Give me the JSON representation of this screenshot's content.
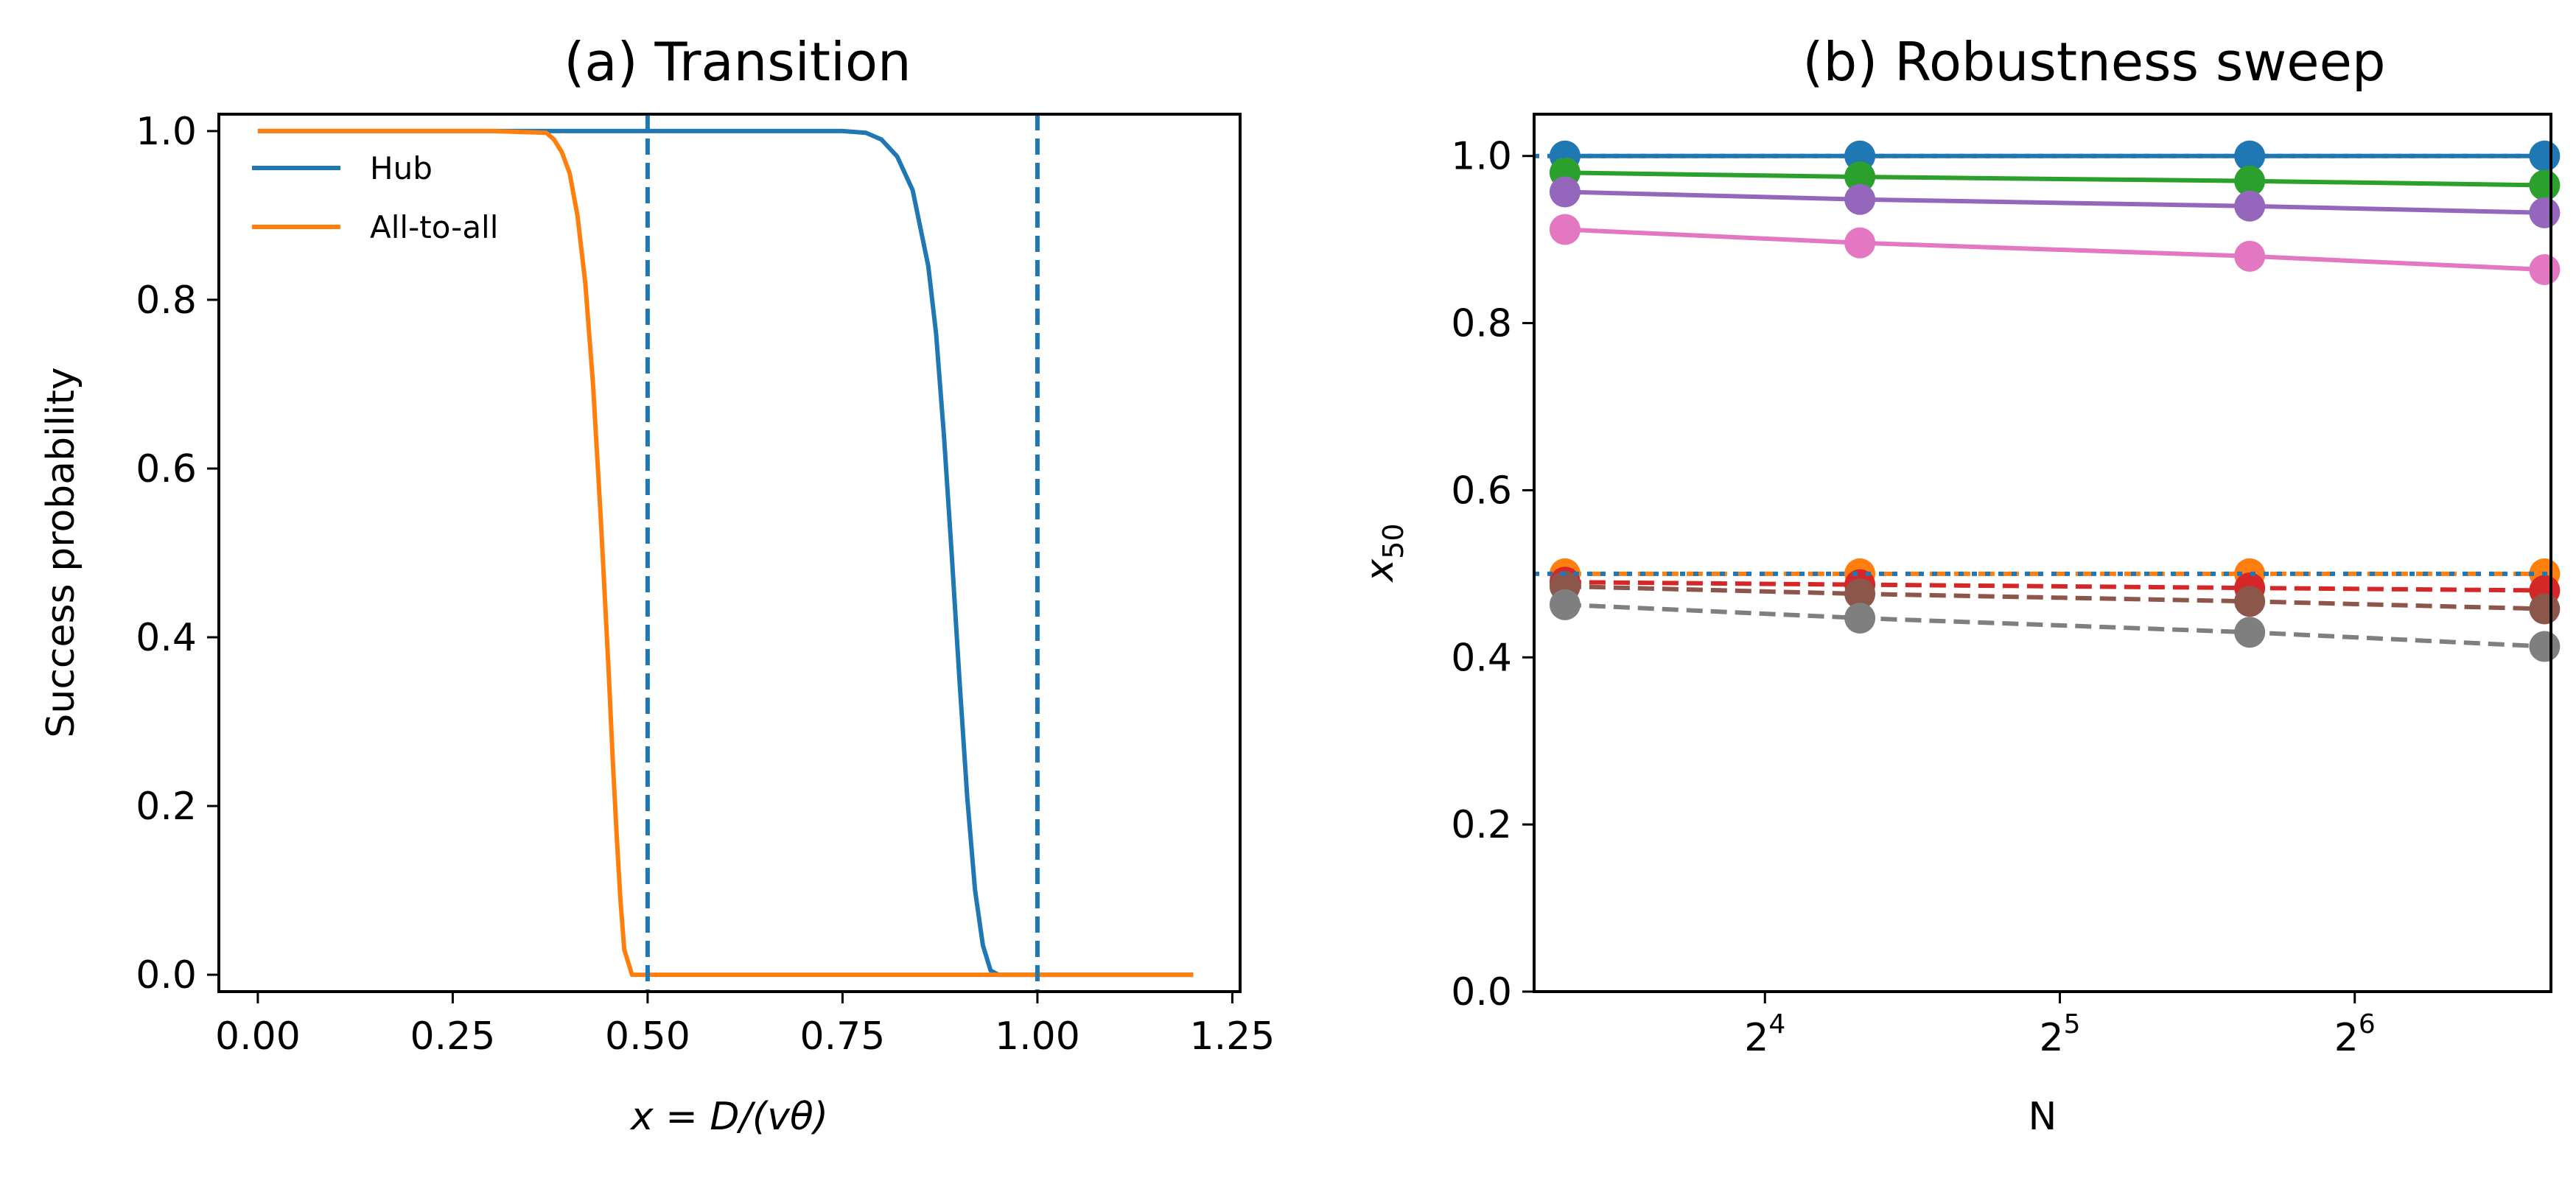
{
  "chart_data": [
    {
      "type": "line",
      "title": "(a) Transition",
      "xlabel": "x = D/(vθ)",
      "ylabel": "Success probability",
      "xlim": [
        -0.05,
        1.26
      ],
      "ylim": [
        -0.02,
        1.02
      ],
      "xticks": [
        0.0,
        0.25,
        0.5,
        0.75,
        1.0,
        1.25
      ],
      "xtick_labels": [
        "0.00",
        "0.25",
        "0.50",
        "0.75",
        "1.00",
        "1.25"
      ],
      "yticks": [
        0.0,
        0.2,
        0.4,
        0.6,
        0.8,
        1.0
      ],
      "ytick_labels": [
        "0.0",
        "0.2",
        "0.4",
        "0.6",
        "0.8",
        "1.0"
      ],
      "grid": false,
      "legend": "upper-left",
      "series": [
        {
          "name": "Hub",
          "color": "#1f77b4",
          "x": [
            0.0,
            0.5,
            0.75,
            0.78,
            0.8,
            0.82,
            0.84,
            0.86,
            0.87,
            0.88,
            0.89,
            0.9,
            0.91,
            0.92,
            0.93,
            0.94,
            0.95,
            1.0,
            1.2
          ],
          "y": [
            1.0,
            1.0,
            1.0,
            0.998,
            0.99,
            0.97,
            0.93,
            0.84,
            0.76,
            0.64,
            0.5,
            0.35,
            0.21,
            0.1,
            0.035,
            0.005,
            0.0,
            0.0,
            0.0
          ]
        },
        {
          "name": "All-to-all",
          "color": "#ff7f0e",
          "x": [
            0.0,
            0.3,
            0.37,
            0.38,
            0.39,
            0.4,
            0.41,
            0.42,
            0.43,
            0.44,
            0.45,
            0.455,
            0.46,
            0.465,
            0.47,
            0.48,
            0.5,
            1.2
          ],
          "y": [
            1.0,
            1.0,
            0.998,
            0.99,
            0.975,
            0.95,
            0.9,
            0.82,
            0.7,
            0.54,
            0.36,
            0.26,
            0.17,
            0.09,
            0.03,
            0.0,
            0.0,
            0.0
          ]
        }
      ],
      "vlines": [
        {
          "x": 0.5,
          "color": "#1f77b4",
          "style": "dashed"
        },
        {
          "x": 1.0,
          "color": "#1f77b4",
          "style": "dashed"
        }
      ]
    },
    {
      "type": "line",
      "title": "(b) Robustness sweep",
      "xlabel": "N",
      "ylabel": "x",
      "ylabel_sub": "50",
      "xscale": "log2",
      "xlim": [
        9.3,
        101.5
      ],
      "ylim": [
        0.0,
        1.05
      ],
      "xticks": [
        16,
        32,
        64
      ],
      "xtick_base": "2",
      "xtick_exps": [
        "4",
        "5",
        "6"
      ],
      "yticks": [
        0.0,
        0.2,
        0.4,
        0.6,
        0.8,
        1.0
      ],
      "ytick_labels": [
        "0.0",
        "0.2",
        "0.4",
        "0.6",
        "0.8",
        "1.0"
      ],
      "grid": false,
      "legend": "none",
      "x": [
        10,
        20,
        50,
        100
      ],
      "hlines": [
        {
          "y": 1.0,
          "color": "#1f77b4",
          "style": "dotted"
        },
        {
          "y": 0.5,
          "color": "#1f77b4",
          "style": "dotted"
        }
      ],
      "series": [
        {
          "color": "#1f77b4",
          "style": "solid",
          "values": [
            1.0,
            1.0,
            1.0,
            1.0
          ]
        },
        {
          "color": "#2ca02c",
          "style": "solid",
          "values": [
            0.98,
            0.975,
            0.97,
            0.965
          ]
        },
        {
          "color": "#9467bd",
          "style": "solid",
          "values": [
            0.957,
            0.948,
            0.94,
            0.932
          ]
        },
        {
          "color": "#e377c2",
          "style": "solid",
          "values": [
            0.912,
            0.896,
            0.88,
            0.864
          ]
        },
        {
          "color": "#ff7f0e",
          "style": "dashed",
          "values": [
            0.5,
            0.5,
            0.5,
            0.5
          ]
        },
        {
          "color": "#d62728",
          "style": "dashed",
          "values": [
            0.49,
            0.487,
            0.483,
            0.48
          ]
        },
        {
          "color": "#8c564b",
          "style": "dashed",
          "values": [
            0.485,
            0.476,
            0.467,
            0.458
          ]
        },
        {
          "color": "#7f7f7f",
          "style": "dashed",
          "values": [
            0.463,
            0.447,
            0.43,
            0.413
          ]
        }
      ]
    }
  ]
}
